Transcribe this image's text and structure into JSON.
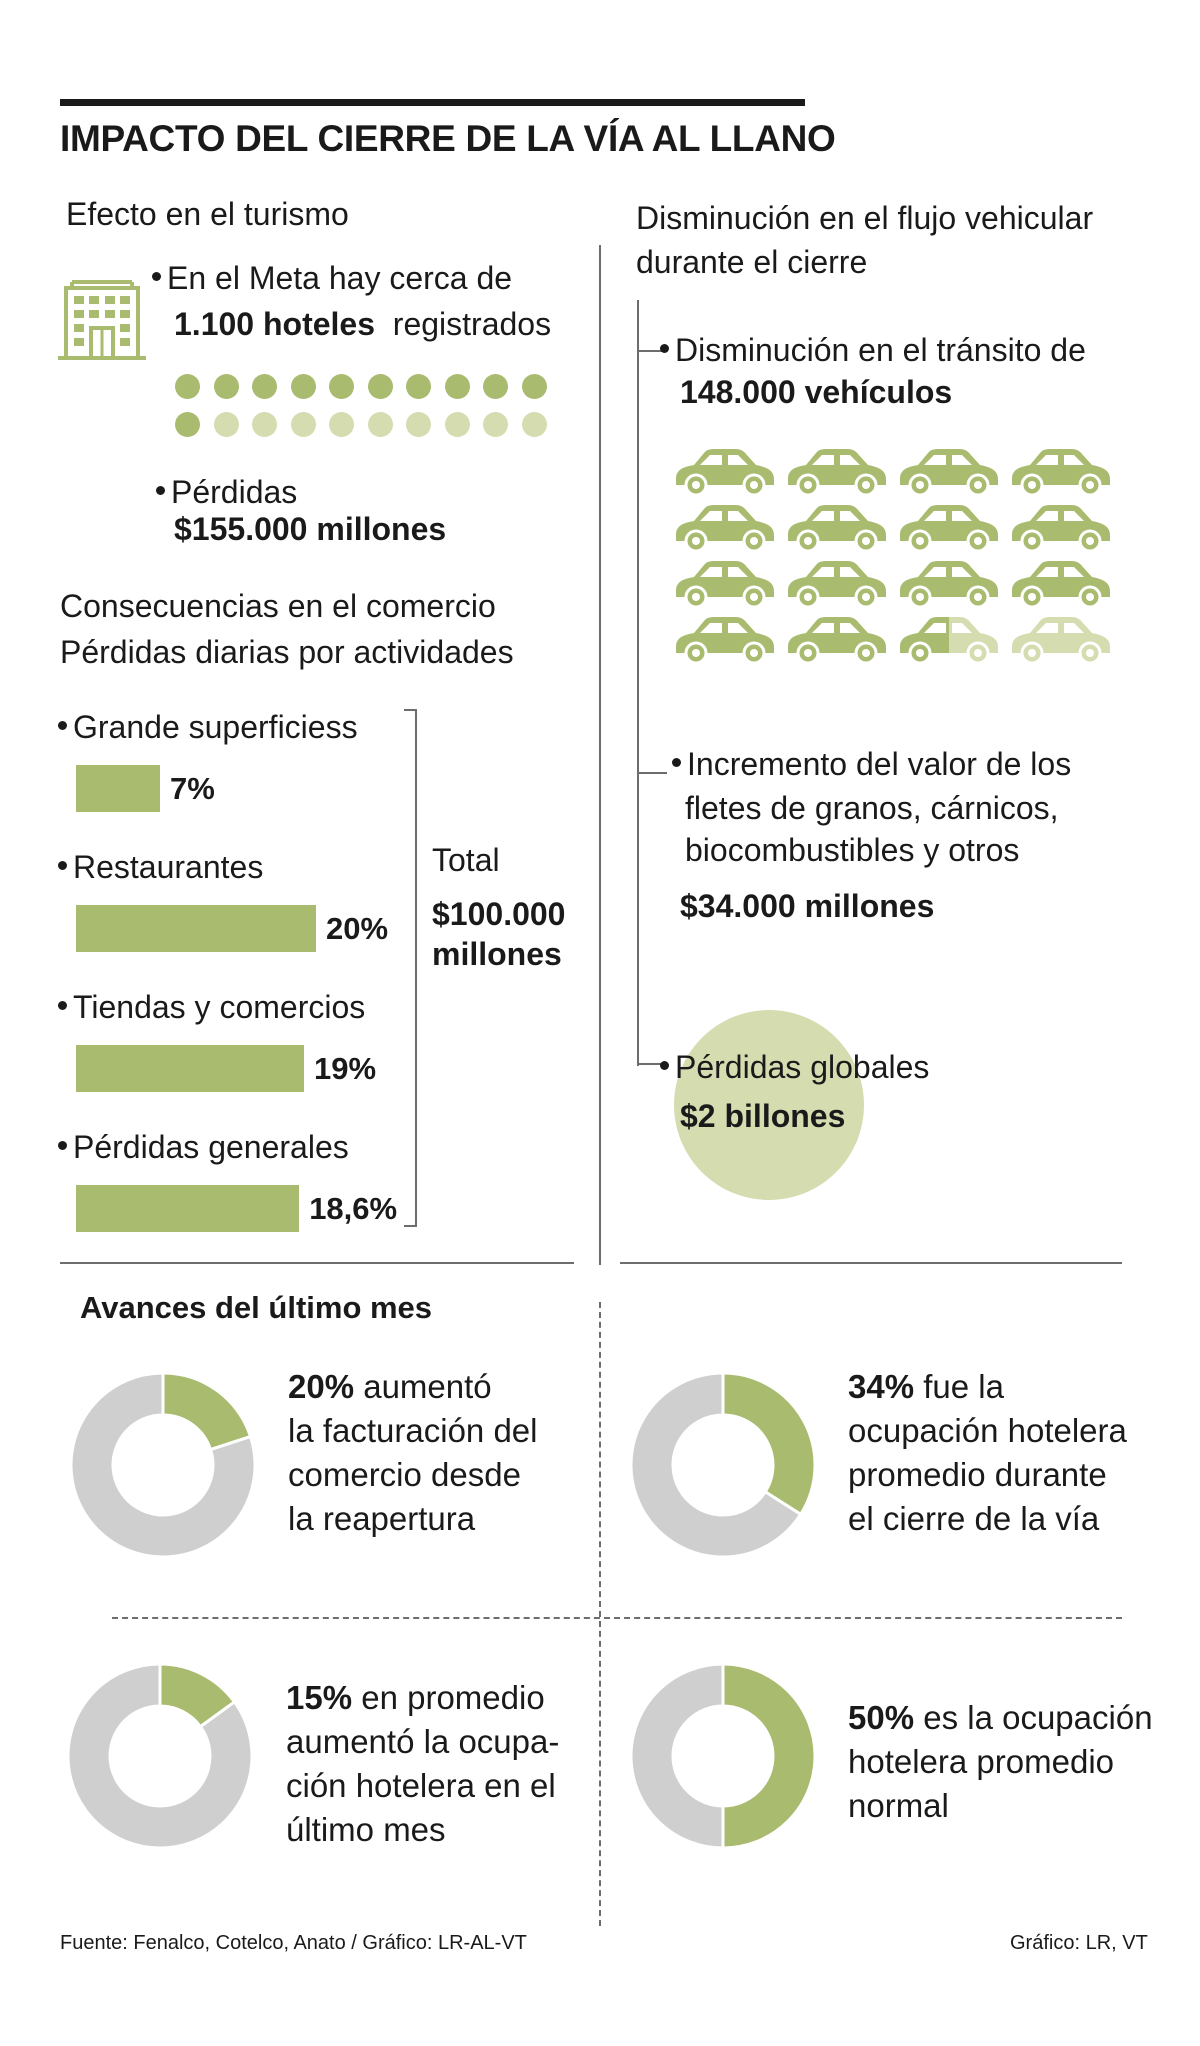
{
  "title": "IMPACTO DEL CIERRE DE LA VÍA AL LLANO",
  "colors": {
    "green": "#a8bb6e",
    "light_green": "#d4dcb0",
    "gray": "#cfcfcf",
    "text": "#1a1a1a"
  },
  "turismo": {
    "heading": "Efecto en el turismo",
    "icon": "hotel-building-icon",
    "hotels_line1": "En el Meta hay cerca de",
    "hotels_bold": "1.100 hoteles",
    "hotels_rest": "registrados",
    "losses_label": "Pérdidas",
    "losses_value": "$155.000 millones"
  },
  "comercio": {
    "heading": "Consecuencias en el comercio",
    "subheading": "Pérdidas diarias por actividades",
    "total_label": "Total",
    "total_value_line1": "$100.000",
    "total_value_line2": "millones"
  },
  "flujo": {
    "heading_line1": "Disminución en el flujo vehicular",
    "heading_line2": "durante el cierre",
    "transit_line1": "Disminución en el tránsito de",
    "transit_bold": "148.000 vehículos",
    "icon": "car-icon",
    "fletes_line1": "Incremento del valor de los",
    "fletes_line2": "fletes de granos, cárnicos,",
    "fletes_line3": "biocombustibles y otros",
    "fletes_value": "$34.000 millones",
    "global_label": "Pérdidas globales",
    "global_value": "$2 billones"
  },
  "avances": {
    "heading": "Avances del último mes",
    "items": [
      {
        "pct": "20%",
        "l1": " aumentó",
        "l2": "la facturación del",
        "l3": "comercio desde",
        "l4": "la reapertura"
      },
      {
        "pct": "34%",
        "l1": " fue la",
        "l2": "ocupación hotelera",
        "l3": "promedio durante",
        "l4": "el cierre de la vía"
      },
      {
        "pct": "15%",
        "l1": " en promedio",
        "l2": "aumentó la ocupa-",
        "l3": "ción hotelera en el",
        "l4": "último mes"
      },
      {
        "pct": "50%",
        "l1": " es la ocupación",
        "l2": "hotelera promedio",
        "l3": "normal",
        "l4": ""
      }
    ]
  },
  "footer": {
    "source": "Fuente: Fenalco, Cotelco, Anato / Gráfico: LR-AL-VT",
    "credit": "Gráfico: LR, VT"
  },
  "chart_data": [
    {
      "type": "bar",
      "categories": [
        "Grande superficiess",
        "Restaurantes",
        "Tiendas y comercios",
        "Pérdidas generales"
      ],
      "values": [
        7,
        20,
        19,
        18.6
      ],
      "value_labels": [
        "7%",
        "20%",
        "19%",
        "18,6%"
      ],
      "orientation": "horizontal"
    },
    {
      "type": "pictogram",
      "title": "1.100 hoteles",
      "total_units": 20,
      "filled_units": 11
    },
    {
      "type": "pictogram",
      "title": "148.000 vehículos",
      "total_units": 16,
      "filled_units": 14.5
    },
    {
      "type": "pie",
      "donut": true,
      "values": [
        20,
        80
      ],
      "labels": [
        "20%",
        ""
      ]
    },
    {
      "type": "pie",
      "donut": true,
      "values": [
        34,
        66
      ],
      "labels": [
        "34%",
        ""
      ]
    },
    {
      "type": "pie",
      "donut": true,
      "values": [
        15,
        85
      ],
      "labels": [
        "15%",
        ""
      ]
    },
    {
      "type": "pie",
      "donut": true,
      "values": [
        50,
        50
      ],
      "labels": [
        "50%",
        ""
      ]
    }
  ]
}
